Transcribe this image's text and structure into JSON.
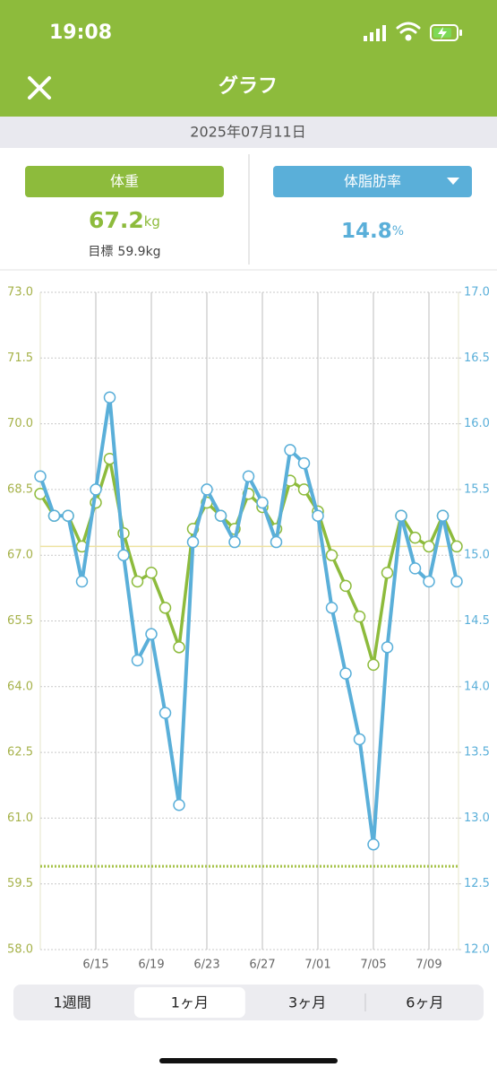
{
  "status_bar": {
    "time": "19:08"
  },
  "header": {
    "title": "グラフ"
  },
  "date": "2025年07月11日",
  "weight": {
    "label": "体重",
    "value": 67.2,
    "unit": "kg",
    "goal_label": "目標",
    "goal": 59.9,
    "goal_unit": "kg"
  },
  "body_fat": {
    "label": "体脂肪率",
    "value": 14.8,
    "unit": "%"
  },
  "chart_data": {
    "type": "line",
    "categories": [
      null,
      null,
      null,
      null,
      "6/15",
      null,
      null,
      null,
      "6/19",
      null,
      null,
      null,
      "6/23",
      null,
      null,
      null,
      "6/27",
      null,
      null,
      null,
      "7/01",
      null,
      null,
      null,
      "7/05",
      null,
      null,
      null,
      "7/09",
      null,
      null
    ],
    "series": [
      {
        "color": "#8dbb3c",
        "axis": "y",
        "values": [
          68.4,
          67.9,
          67.9,
          67.2,
          68.2,
          69.2,
          67.5,
          66.4,
          66.6,
          65.8,
          64.9,
          67.6,
          68.2,
          67.9,
          67.6,
          68.4,
          68.1,
          67.6,
          68.7,
          68.5,
          68.0,
          67.0,
          66.3,
          65.6,
          64.5,
          66.6,
          67.9,
          67.4,
          67.2,
          67.9,
          67.2
        ]
      },
      {
        "color": "#5aafd9",
        "axis": "y2",
        "values": [
          15.6,
          15.3,
          15.3,
          14.8,
          15.5,
          16.2,
          15.0,
          14.2,
          14.4,
          13.8,
          13.1,
          15.1,
          15.5,
          15.3,
          15.1,
          15.6,
          15.4,
          15.1,
          15.8,
          15.7,
          15.3,
          14.6,
          14.1,
          13.6,
          12.8,
          14.3,
          15.3,
          14.9,
          14.8,
          15.3,
          14.8
        ]
      }
    ],
    "ylim": [
      58,
      73
    ],
    "yticks": [
      {
        "value": 58,
        "label": "58.0"
      },
      {
        "value": 59.5,
        "label": "59.5"
      },
      {
        "value": 61,
        "label": "61.0"
      },
      {
        "value": 62.5,
        "label": "62.5"
      },
      {
        "value": 64,
        "label": "64.0"
      },
      {
        "value": 65.5,
        "label": "65.5"
      },
      {
        "value": 67,
        "label": "67.0"
      },
      {
        "value": 68.5,
        "label": "68.5"
      },
      {
        "value": 70,
        "label": "70.0"
      },
      {
        "value": 71.5,
        "label": "71.5"
      },
      {
        "value": 73,
        "label": "73.0"
      }
    ],
    "y2lim": [
      12,
      17
    ],
    "y2ticks": [
      {
        "value": 12,
        "label": "12.0"
      },
      {
        "value": 12.5,
        "label": "12.5"
      },
      {
        "value": 13,
        "label": "13.0"
      },
      {
        "value": 13.5,
        "label": "13.5"
      },
      {
        "value": 14,
        "label": "14.0"
      },
      {
        "value": 14.5,
        "label": "14.5"
      },
      {
        "value": 15,
        "label": "15.0"
      },
      {
        "value": 15.5,
        "label": "15.5"
      },
      {
        "value": 16,
        "label": "16.0"
      },
      {
        "value": 16.5,
        "label": "16.5"
      },
      {
        "value": 17,
        "label": "17.0"
      }
    ],
    "grid": true
  },
  "periods": [
    "1週間",
    "1ヶ月",
    "3ヶ月",
    "6ヶ月"
  ],
  "selected_period": 1
}
